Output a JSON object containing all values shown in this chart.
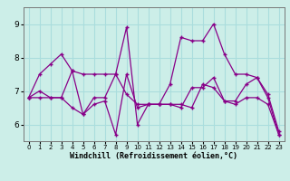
{
  "xlabel": "Windchill (Refroidissement éolien,°C)",
  "bg_color": "#cceee8",
  "line_color": "#880088",
  "grid_color": "#aadddd",
  "axis_bg": "#cceee8",
  "xlim": [
    -0.5,
    23.5
  ],
  "ylim": [
    5.5,
    9.5
  ],
  "yticks": [
    6,
    7,
    8,
    9
  ],
  "xticks": [
    0,
    1,
    2,
    3,
    4,
    5,
    6,
    7,
    8,
    9,
    10,
    11,
    12,
    13,
    14,
    15,
    16,
    17,
    18,
    19,
    20,
    21,
    22,
    23
  ],
  "series": [
    [
      6.8,
      7.5,
      7.8,
      8.1,
      7.6,
      7.5,
      7.5,
      7.5,
      7.5,
      8.9,
      6.0,
      6.6,
      6.6,
      7.2,
      8.6,
      8.5,
      8.5,
      9.0,
      8.1,
      7.5,
      7.5,
      7.4,
      6.9,
      5.8
    ],
    [
      6.8,
      7.0,
      6.8,
      6.8,
      7.6,
      6.3,
      6.8,
      6.8,
      7.5,
      6.9,
      6.6,
      6.6,
      6.6,
      6.6,
      6.5,
      7.1,
      7.1,
      7.4,
      6.7,
      6.7,
      7.2,
      7.4,
      6.8,
      5.7
    ],
    [
      6.8,
      6.8,
      6.8,
      6.8,
      6.5,
      6.3,
      6.6,
      6.7,
      5.7,
      7.5,
      6.5,
      6.6,
      6.6,
      6.6,
      6.6,
      6.5,
      7.2,
      7.1,
      6.7,
      6.6,
      6.8,
      6.8,
      6.6,
      5.7
    ]
  ]
}
